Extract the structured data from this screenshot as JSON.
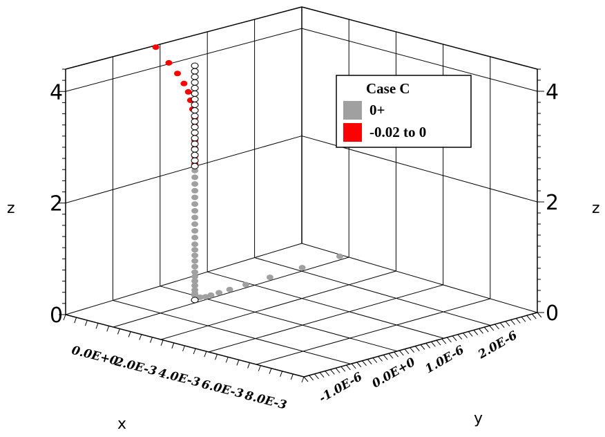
{
  "chart_data": {
    "type": "scatter",
    "projection": "3d",
    "axes": {
      "x": {
        "label": "x",
        "range": [
          -0.002,
          0.009
        ],
        "ticks": [
          "0.0E+0",
          "2.0E-3",
          "4.0E-3",
          "6.0E-3",
          "8.0E-3"
        ],
        "tick_values": [
          0.0,
          0.002,
          0.004,
          0.006,
          0.008
        ]
      },
      "y": {
        "label": "y",
        "range": [
          -1.6e-06,
          2.8e-06
        ],
        "ticks": [
          "-1.0E-6",
          "0.0E+0",
          "1.0E-6",
          "2.0E-6"
        ],
        "tick_values": [
          -1e-06,
          0.0,
          1e-06,
          2e-06
        ]
      },
      "z": {
        "label": "z",
        "range": [
          0,
          4.4
        ],
        "ticks": [
          "0",
          "2",
          "4"
        ],
        "tick_values": [
          0,
          2,
          4
        ]
      }
    },
    "grid": true,
    "legend": {
      "title": "Case C",
      "position": "top-right",
      "entries": [
        {
          "label": "0+",
          "color": "#a0a0a0"
        },
        {
          "label": "-0.02 to 0",
          "color": "#ff0000"
        }
      ]
    },
    "series": [
      {
        "name": "-0.02 to 0",
        "color": "#ff0000",
        "points": [
          {
            "x": -0.0018,
            "y": 0.0,
            "z": 4.35
          },
          {
            "x": -0.0012,
            "y": 0.0,
            "z": 4.13
          },
          {
            "x": -0.0008,
            "y": 0.0,
            "z": 3.98
          },
          {
            "x": -0.0005,
            "y": 0.0,
            "z": 3.83
          },
          {
            "x": -0.0003,
            "y": 0.0,
            "z": 3.7
          },
          {
            "x": -0.0002,
            "y": 0.0,
            "z": 3.56
          },
          {
            "x": -0.0001,
            "y": 0.0,
            "z": 3.41
          },
          {
            "x": 0.0,
            "y": 0.0,
            "z": 3.27
          },
          {
            "x": 0.0,
            "y": 0.0,
            "z": 3.12
          },
          {
            "x": 0.0,
            "y": 0.0,
            "z": 3.0
          },
          {
            "x": 0.0,
            "y": 0.0,
            "z": 2.86
          },
          {
            "x": 0.0,
            "y": 0.0,
            "z": 2.72
          },
          {
            "x": 0.0,
            "y": 0.0,
            "z": 2.58
          },
          {
            "x": 0.0,
            "y": 0.0,
            "z": 2.44
          }
        ]
      },
      {
        "name": "0+",
        "color": "#a0a0a0",
        "points": [
          {
            "x": 0.0,
            "y": 0.0,
            "z": 2.32
          },
          {
            "x": 0.0,
            "y": 0.0,
            "z": 2.2
          },
          {
            "x": 0.0,
            "y": 0.0,
            "z": 2.08
          },
          {
            "x": 0.0,
            "y": 0.0,
            "z": 1.96
          },
          {
            "x": 0.0,
            "y": 0.0,
            "z": 1.84
          },
          {
            "x": 0.0,
            "y": 0.0,
            "z": 1.72
          },
          {
            "x": 0.0,
            "y": 0.0,
            "z": 1.6
          },
          {
            "x": 0.0,
            "y": 0.0,
            "z": 1.48
          },
          {
            "x": 0.0,
            "y": 0.0,
            "z": 1.36
          },
          {
            "x": 0.0,
            "y": 0.0,
            "z": 1.24
          },
          {
            "x": 0.0,
            "y": 0.0,
            "z": 1.12
          },
          {
            "x": 0.0,
            "y": 0.0,
            "z": 1.0
          },
          {
            "x": 0.0,
            "y": 0.0,
            "z": 0.9
          },
          {
            "x": 0.0,
            "y": 0.0,
            "z": 0.8
          },
          {
            "x": 0.0,
            "y": 0.0,
            "z": 0.7
          },
          {
            "x": 0.0,
            "y": 0.0,
            "z": 0.6
          },
          {
            "x": 0.0,
            "y": 0.0,
            "z": 0.5
          },
          {
            "x": 0.0,
            "y": 0.0,
            "z": 0.42
          },
          {
            "x": 0.0,
            "y": 0.0,
            "z": 0.34
          },
          {
            "x": 0.0,
            "y": 0.0,
            "z": 0.26
          },
          {
            "x": 0.0,
            "y": 0.0,
            "z": 0.18
          },
          {
            "x": 0.0,
            "y": 0.0,
            "z": 0.12
          },
          {
            "x": 0.0,
            "y": 0.0,
            "z": 0.08
          },
          {
            "x": 0.0,
            "y": 3e-08,
            "z": 0.05
          },
          {
            "x": 0.0,
            "y": 5e-08,
            "z": 0.03
          },
          {
            "x": 0.0,
            "y": 1e-07,
            "z": 0.02
          },
          {
            "x": 0.0,
            "y": 2e-07,
            "z": 0.0
          },
          {
            "x": 0.0,
            "y": 3e-07,
            "z": 0.0
          },
          {
            "x": 0.0,
            "y": 4.5e-07,
            "z": 0.0
          },
          {
            "x": 0.0,
            "y": 6.5e-07,
            "z": 0.0
          },
          {
            "x": 0.0,
            "y": 9.5e-07,
            "z": 0.0
          },
          {
            "x": 0.0,
            "y": 1.4e-06,
            "z": 0.0
          },
          {
            "x": 0.0,
            "y": 2e-06,
            "z": 0.0
          },
          {
            "x": 0.0,
            "y": 2.7e-06,
            "z": 0.0
          }
        ]
      },
      {
        "name": "",
        "color": "#ffffff",
        "outline": "#000000",
        "points": [
          {
            "x": 0.0,
            "y": 0.0,
            "z": 4.2
          },
          {
            "x": 0.0,
            "y": 0.0,
            "z": 4.1
          },
          {
            "x": 0.0,
            "y": 0.0,
            "z": 4.0
          },
          {
            "x": 0.0,
            "y": 0.0,
            "z": 3.9
          },
          {
            "x": 0.0,
            "y": 0.0,
            "z": 3.8
          },
          {
            "x": 0.0,
            "y": 0.0,
            "z": 3.7
          },
          {
            "x": 0.0,
            "y": 0.0,
            "z": 3.6
          },
          {
            "x": 0.0,
            "y": 0.0,
            "z": 3.5
          },
          {
            "x": 0.0,
            "y": 0.0,
            "z": 3.4
          },
          {
            "x": 0.0,
            "y": 0.0,
            "z": 3.3
          },
          {
            "x": 0.0,
            "y": 0.0,
            "z": 3.2
          },
          {
            "x": 0.0,
            "y": 0.0,
            "z": 3.1
          },
          {
            "x": 0.0,
            "y": 0.0,
            "z": 3.0
          },
          {
            "x": 0.0,
            "y": 0.0,
            "z": 2.9
          },
          {
            "x": 0.0,
            "y": 0.0,
            "z": 2.8
          },
          {
            "x": 0.0,
            "y": 0.0,
            "z": 2.7
          },
          {
            "x": 0.0,
            "y": 0.0,
            "z": 2.6
          },
          {
            "x": 0.0,
            "y": 0.0,
            "z": 2.5
          },
          {
            "x": 0.0,
            "y": 0.0,
            "z": 2.4
          },
          {
            "x": 0.0,
            "y": 0.0,
            "z": 0.0
          }
        ]
      }
    ]
  }
}
